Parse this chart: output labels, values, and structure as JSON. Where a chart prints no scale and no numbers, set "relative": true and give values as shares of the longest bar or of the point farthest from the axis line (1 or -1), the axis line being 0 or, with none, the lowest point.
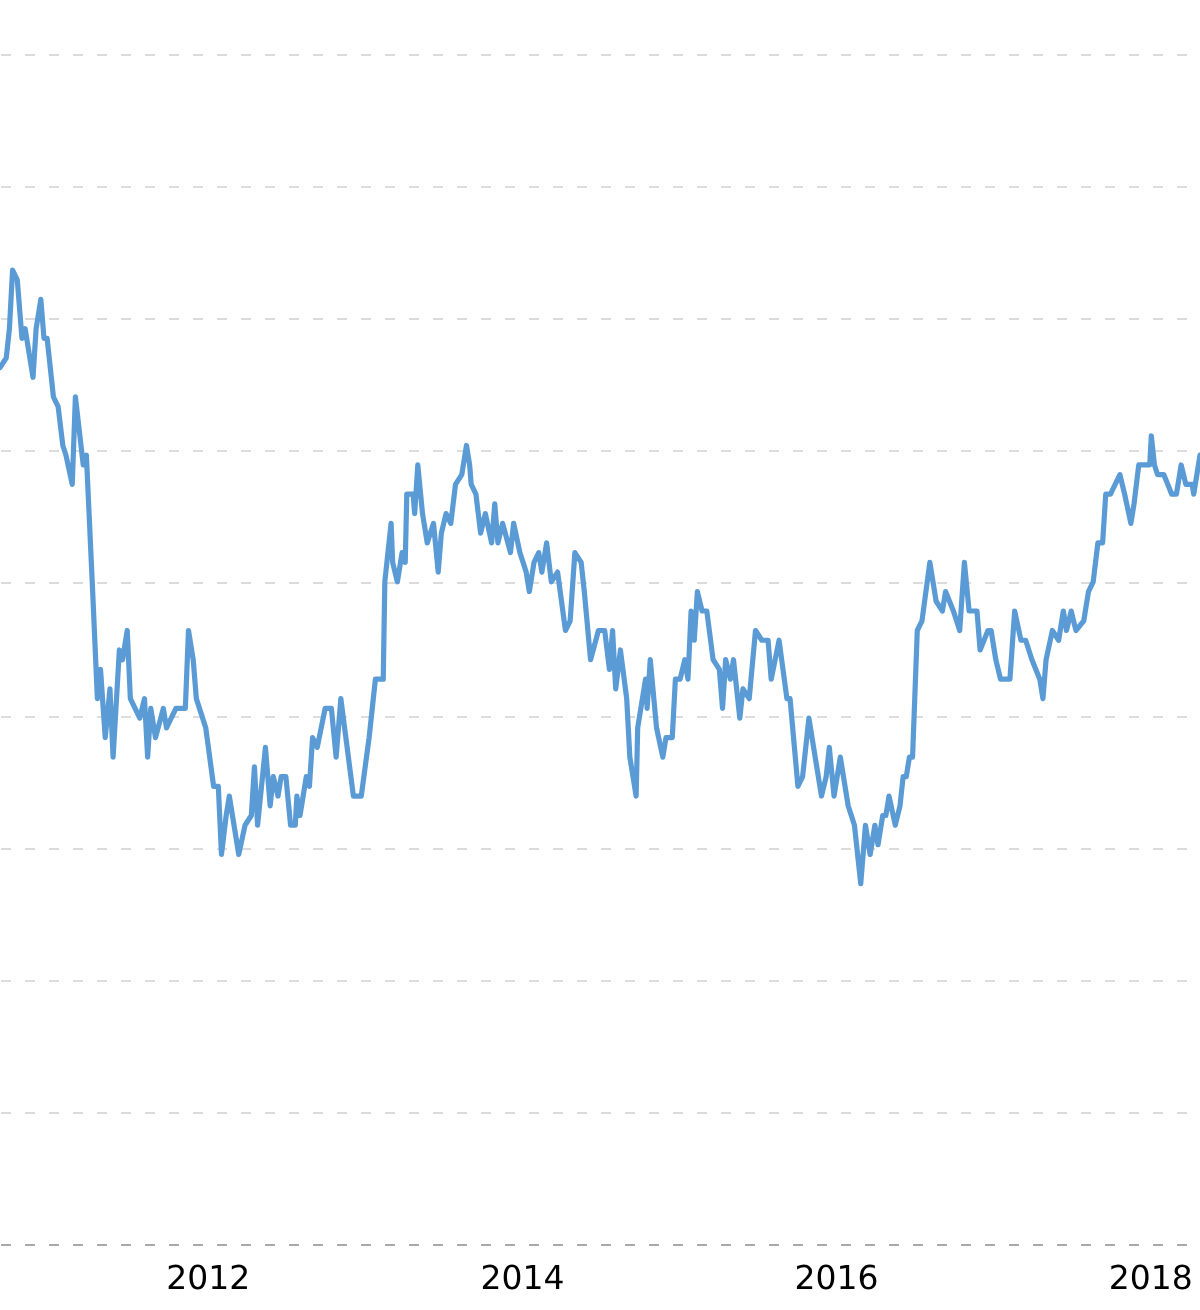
{
  "chart_data": {
    "type": "line",
    "relative": true,
    "x": [
      2010.68,
      2010.72,
      2010.74,
      2010.76,
      2010.79,
      2010.82,
      2010.84,
      2010.89,
      2010.91,
      2010.94,
      2010.96,
      2010.98,
      2011.02,
      2011.05,
      2011.08,
      2011.1,
      2011.14,
      2011.16,
      2011.21,
      2011.23,
      2011.27,
      2011.3,
      2011.32,
      2011.35,
      2011.38,
      2011.4,
      2011.44,
      2011.46,
      2011.49,
      2011.51,
      2011.57,
      2011.6,
      2011.62,
      2011.64,
      2011.67,
      2011.72,
      2011.74,
      2011.8,
      2011.86,
      2011.88,
      2011.91,
      2011.93,
      2011.99,
      2012.04,
      2012.07,
      2012.09,
      2012.12,
      2012.14,
      2012.16,
      2012.2,
      2012.24,
      2012.28,
      2012.3,
      2012.32,
      2012.37,
      2012.4,
      2012.42,
      2012.45,
      2012.47,
      2012.5,
      2012.53,
      2012.56,
      2012.57,
      2012.59,
      2012.63,
      2012.65,
      2012.67,
      2012.7,
      2012.75,
      2012.79,
      2012.82,
      2012.85,
      2012.89,
      2012.93,
      2012.98,
      2013.03,
      2013.05,
      2013.07,
      2013.12,
      2013.13,
      2013.17,
      2013.18,
      2013.21,
      2013.24,
      2013.26,
      2013.27,
      2013.31,
      2013.32,
      2013.34,
      2013.37,
      2013.4,
      2013.44,
      2013.47,
      2013.49,
      2013.52,
      2013.55,
      2013.58,
      2013.62,
      2013.65,
      2013.67,
      2013.68,
      2013.71,
      2013.74,
      2013.77,
      2013.81,
      2013.83,
      2013.85,
      2013.88,
      2013.93,
      2013.95,
      2013.99,
      2014.03,
      2014.05,
      2014.08,
      2014.11,
      2014.13,
      2014.16,
      2014.19,
      2014.23,
      2014.28,
      2014.31,
      2014.34,
      2014.38,
      2014.4,
      2014.44,
      2014.49,
      2014.53,
      2014.56,
      2014.58,
      2014.6,
      2014.63,
      2014.67,
      2014.69,
      2014.73,
      2014.74,
      2014.79,
      2014.8,
      2014.82,
      2014.86,
      2014.9,
      2014.92,
      2014.96,
      2014.98,
      2015.01,
      2015.04,
      2015.06,
      2015.08,
      2015.1,
      2015.12,
      2015.15,
      2015.18,
      2015.22,
      2015.26,
      2015.28,
      2015.3,
      2015.33,
      2015.35,
      2015.39,
      2015.41,
      2015.45,
      2015.49,
      2015.53,
      2015.57,
      2015.59,
      2015.64,
      2015.69,
      2015.71,
      2015.76,
      2015.79,
      2015.83,
      2015.86,
      2015.91,
      2015.94,
      2015.96,
      2015.99,
      2016.03,
      2016.08,
      2016.12,
      2016.16,
      2016.19,
      2016.22,
      2016.25,
      2016.27,
      2016.3,
      2016.32,
      2016.34,
      2016.38,
      2016.41,
      2016.43,
      2016.45,
      2016.47,
      2016.49,
      2016.52,
      2016.55,
      2016.6,
      2016.64,
      2016.68,
      2016.7,
      2016.75,
      2016.79,
      2016.82,
      2016.85,
      2016.9,
      2016.92,
      2016.97,
      2016.99,
      2017.02,
      2017.05,
      2017.09,
      2017.11,
      2017.14,
      2017.18,
      2017.21,
      2017.25,
      2017.3,
      2017.32,
      2017.34,
      2017.38,
      2017.42,
      2017.45,
      2017.47,
      2017.5,
      2017.53,
      2017.58,
      2017.61,
      2017.64,
      2017.67,
      2017.7,
      2017.72,
      2017.75,
      2017.78,
      2017.81,
      2017.84,
      2017.88,
      2017.9,
      2017.93,
      2017.97,
      2018.0,
      2018.01,
      2018.03,
      2018.05,
      2018.09,
      2018.14,
      2018.17,
      2018.2,
      2018.23,
      2018.27,
      2018.28,
      2018.32
    ],
    "series": [
      {
        "color": "#5b9bd5",
        "values": [
          0.9,
          0.91,
          0.94,
          1.0,
          0.99,
          0.93,
          0.94,
          0.89,
          0.94,
          0.97,
          0.93,
          0.93,
          0.87,
          0.86,
          0.82,
          0.81,
          0.78,
          0.87,
          0.8,
          0.81,
          0.67,
          0.56,
          0.59,
          0.52,
          0.57,
          0.5,
          0.61,
          0.6,
          0.63,
          0.56,
          0.54,
          0.56,
          0.5,
          0.55,
          0.52,
          0.55,
          0.53,
          0.55,
          0.55,
          0.63,
          0.6,
          0.56,
          0.53,
          0.47,
          0.47,
          0.4,
          0.44,
          0.46,
          0.44,
          0.4,
          0.43,
          0.44,
          0.49,
          0.43,
          0.51,
          0.45,
          0.48,
          0.46,
          0.48,
          0.48,
          0.43,
          0.43,
          0.46,
          0.44,
          0.48,
          0.47,
          0.52,
          0.51,
          0.55,
          0.55,
          0.5,
          0.56,
          0.51,
          0.46,
          0.46,
          0.52,
          0.55,
          0.58,
          0.58,
          0.68,
          0.74,
          0.7,
          0.68,
          0.71,
          0.7,
          0.77,
          0.77,
          0.75,
          0.8,
          0.75,
          0.72,
          0.74,
          0.69,
          0.73,
          0.75,
          0.74,
          0.78,
          0.79,
          0.82,
          0.8,
          0.78,
          0.77,
          0.73,
          0.75,
          0.72,
          0.76,
          0.72,
          0.74,
          0.71,
          0.74,
          0.71,
          0.69,
          0.67,
          0.7,
          0.71,
          0.69,
          0.72,
          0.68,
          0.69,
          0.63,
          0.64,
          0.71,
          0.7,
          0.67,
          0.6,
          0.63,
          0.63,
          0.59,
          0.63,
          0.57,
          0.61,
          0.56,
          0.5,
          0.46,
          0.53,
          0.58,
          0.55,
          0.6,
          0.53,
          0.5,
          0.52,
          0.52,
          0.58,
          0.58,
          0.6,
          0.58,
          0.65,
          0.62,
          0.67,
          0.65,
          0.65,
          0.6,
          0.59,
          0.55,
          0.6,
          0.58,
          0.6,
          0.54,
          0.57,
          0.56,
          0.63,
          0.62,
          0.62,
          0.58,
          0.62,
          0.56,
          0.56,
          0.47,
          0.48,
          0.54,
          0.51,
          0.46,
          0.48,
          0.51,
          0.46,
          0.5,
          0.45,
          0.43,
          0.37,
          0.43,
          0.4,
          0.43,
          0.41,
          0.44,
          0.44,
          0.46,
          0.43,
          0.45,
          0.48,
          0.48,
          0.5,
          0.5,
          0.63,
          0.64,
          0.7,
          0.66,
          0.65,
          0.67,
          0.65,
          0.63,
          0.7,
          0.65,
          0.65,
          0.61,
          0.63,
          0.63,
          0.6,
          0.58,
          0.58,
          0.58,
          0.65,
          0.62,
          0.62,
          0.6,
          0.58,
          0.56,
          0.6,
          0.63,
          0.62,
          0.65,
          0.63,
          0.65,
          0.63,
          0.64,
          0.67,
          0.68,
          0.72,
          0.72,
          0.77,
          0.77,
          0.78,
          0.79,
          0.77,
          0.74,
          0.76,
          0.8,
          0.8,
          0.8,
          0.83,
          0.8,
          0.79,
          0.79,
          0.77,
          0.77,
          0.8,
          0.78,
          0.78,
          0.77,
          0.81
        ]
      }
    ],
    "xlim": [
      2010.68,
      2018.32
    ],
    "xticks": [
      2012,
      2014,
      2016,
      2018
    ],
    "grid": "y",
    "line_style": "solid"
  }
}
